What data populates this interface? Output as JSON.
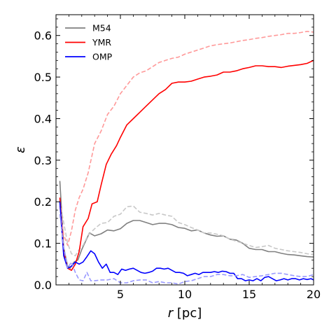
{
  "chart_data": {
    "type": "line",
    "xlabel_var": "r",
    "xlabel_unit": " [pc]",
    "ylabel": "ε",
    "xlim": [
      0,
      20
    ],
    "ylim": [
      0,
      0.65
    ],
    "xticks": [
      5,
      10,
      15,
      20
    ],
    "xtick_labels": [
      "5",
      "10",
      "15",
      "20"
    ],
    "yticks": [
      0.0,
      0.1,
      0.2,
      0.3,
      0.4,
      0.5,
      0.6
    ],
    "ytick_labels": [
      "0.0",
      "0.1",
      "0.2",
      "0.3",
      "0.4",
      "0.5",
      "0.6"
    ],
    "grid": false,
    "legend_position": "top-left",
    "legend": [
      {
        "name": "M54",
        "color": "#808080"
      },
      {
        "name": "YMR",
        "color": "#ff0000"
      },
      {
        "name": "OMP",
        "color": "#0000ff"
      }
    ],
    "series": [
      {
        "name": "M54",
        "style": "solid",
        "color": "#808080",
        "x": [
          0.3,
          0.6,
          0.9,
          1.1,
          1.4,
          1.7,
          2.0,
          2.3,
          2.6,
          3.0,
          3.5,
          4.0,
          4.5,
          5.0,
          5.5,
          6.0,
          6.5,
          7.0,
          7.5,
          8.0,
          8.5,
          9.0,
          9.5,
          10.0,
          10.5,
          11.0,
          11.5,
          12.0,
          12.5,
          13.0,
          13.5,
          14.0,
          14.5,
          15.0,
          15.5,
          16.0,
          16.5,
          17.0,
          17.5,
          18.0,
          18.5,
          19.0,
          19.5,
          20.0
        ],
        "y": [
          0.25,
          0.09,
          0.045,
          0.04,
          0.055,
          0.06,
          0.085,
          0.105,
          0.125,
          0.118,
          0.123,
          0.132,
          0.13,
          0.135,
          0.148,
          0.155,
          0.155,
          0.15,
          0.145,
          0.148,
          0.148,
          0.145,
          0.138,
          0.136,
          0.13,
          0.132,
          0.125,
          0.12,
          0.117,
          0.118,
          0.11,
          0.108,
          0.1,
          0.088,
          0.085,
          0.085,
          0.08,
          0.08,
          0.076,
          0.073,
          0.072,
          0.07,
          0.068,
          0.067
        ]
      },
      {
        "name": "M54 (dashed)",
        "style": "dashed",
        "color": "#c8c8c8",
        "x": [
          0.3,
          0.6,
          0.9,
          1.2,
          1.5,
          1.8,
          2.1,
          2.5,
          3.0,
          3.5,
          4.0,
          4.5,
          5.0,
          5.5,
          6.0,
          6.5,
          7.0,
          7.5,
          8.0,
          8.5,
          9.0,
          9.5,
          10.0,
          10.5,
          11.0,
          11.5,
          12.0,
          12.5,
          13.0,
          13.5,
          14.0,
          14.5,
          15.0,
          15.5,
          16.0,
          16.5,
          17.0,
          17.5,
          18.0,
          18.5,
          19.0,
          19.5,
          20.0
        ],
        "y": [
          0.2,
          0.15,
          0.1,
          0.075,
          0.07,
          0.085,
          0.095,
          0.12,
          0.135,
          0.148,
          0.15,
          0.165,
          0.17,
          0.188,
          0.19,
          0.175,
          0.172,
          0.168,
          0.172,
          0.168,
          0.165,
          0.15,
          0.145,
          0.138,
          0.132,
          0.125,
          0.125,
          0.122,
          0.118,
          0.11,
          0.105,
          0.1,
          0.095,
          0.09,
          0.092,
          0.095,
          0.088,
          0.085,
          0.082,
          0.08,
          0.078,
          0.075,
          0.073
        ]
      },
      {
        "name": "YMR",
        "style": "solid",
        "color": "#ff0000",
        "x": [
          0.3,
          0.6,
          0.9,
          1.2,
          1.5,
          1.8,
          2.1,
          2.5,
          2.8,
          3.2,
          3.5,
          3.9,
          4.3,
          4.7,
          5.0,
          5.5,
          6.0,
          6.5,
          7.0,
          7.5,
          8.0,
          8.5,
          9.0,
          9.5,
          10.0,
          10.5,
          11.0,
          11.5,
          12.0,
          12.5,
          13.0,
          13.5,
          14.0,
          14.5,
          15.0,
          15.5,
          16.0,
          16.5,
          17.0,
          17.5,
          18.0,
          18.5,
          19.0,
          19.5,
          20.0
        ],
        "y": [
          0.21,
          0.08,
          0.04,
          0.035,
          0.05,
          0.08,
          0.14,
          0.16,
          0.195,
          0.2,
          0.24,
          0.29,
          0.315,
          0.335,
          0.355,
          0.385,
          0.4,
          0.415,
          0.43,
          0.445,
          0.46,
          0.47,
          0.485,
          0.488,
          0.488,
          0.49,
          0.495,
          0.5,
          0.502,
          0.505,
          0.512,
          0.512,
          0.515,
          0.52,
          0.523,
          0.527,
          0.527,
          0.525,
          0.525,
          0.523,
          0.526,
          0.528,
          0.53,
          0.533,
          0.54
        ]
      },
      {
        "name": "YMR (dashed)",
        "style": "dashed",
        "color": "#ff9999",
        "x": [
          0.3,
          0.6,
          0.9,
          1.2,
          1.5,
          1.8,
          2.1,
          2.5,
          3.0,
          3.5,
          4.0,
          4.5,
          5.0,
          5.5,
          6.0,
          6.5,
          7.0,
          7.5,
          8.0,
          8.5,
          9.0,
          9.5,
          10.0,
          10.5,
          11.0,
          11.5,
          12.0,
          12.5,
          13.0,
          13.5,
          14.0,
          14.5,
          15.0,
          15.5,
          16.0,
          16.5,
          17.0,
          17.5,
          18.0,
          18.5,
          19.0,
          19.5,
          20.0
        ],
        "y": [
          0.19,
          0.12,
          0.095,
          0.13,
          0.18,
          0.21,
          0.23,
          0.27,
          0.34,
          0.37,
          0.41,
          0.43,
          0.46,
          0.48,
          0.5,
          0.51,
          0.515,
          0.525,
          0.535,
          0.54,
          0.545,
          0.548,
          0.555,
          0.56,
          0.565,
          0.57,
          0.575,
          0.578,
          0.58,
          0.582,
          0.585,
          0.588,
          0.59,
          0.593,
          0.595,
          0.598,
          0.6,
          0.602,
          0.605,
          0.605,
          0.607,
          0.61,
          0.608
        ]
      },
      {
        "name": "OMP",
        "style": "solid",
        "color": "#0000ff",
        "x": [
          0.3,
          0.6,
          0.9,
          1.2,
          1.5,
          1.8,
          2.1,
          2.4,
          2.7,
          3.0,
          3.3,
          3.6,
          3.9,
          4.2,
          4.5,
          4.8,
          5.1,
          5.4,
          5.7,
          6.0,
          6.3,
          6.6,
          6.9,
          7.2,
          7.5,
          7.8,
          8.1,
          8.4,
          8.7,
          9.0,
          9.3,
          9.6,
          9.9,
          10.2,
          10.5,
          10.8,
          11.1,
          11.4,
          11.7,
          12.0,
          12.3,
          12.6,
          12.9,
          13.2,
          13.5,
          13.8,
          14.1,
          14.4,
          14.7,
          15.0,
          15.3,
          15.6,
          15.9,
          16.2,
          16.5,
          16.8,
          17.1,
          17.4,
          17.7,
          18.0,
          18.3,
          18.6,
          18.9,
          19.2,
          19.5,
          19.8,
          20.0
        ],
        "y": [
          0.2,
          0.07,
          0.04,
          0.045,
          0.055,
          0.05,
          0.055,
          0.068,
          0.082,
          0.075,
          0.055,
          0.04,
          0.05,
          0.03,
          0.03,
          0.025,
          0.038,
          0.035,
          0.038,
          0.04,
          0.035,
          0.03,
          0.028,
          0.03,
          0.033,
          0.04,
          0.04,
          0.038,
          0.04,
          0.035,
          0.03,
          0.03,
          0.028,
          0.022,
          0.025,
          0.028,
          0.025,
          0.03,
          0.03,
          0.03,
          0.032,
          0.03,
          0.033,
          0.032,
          0.028,
          0.028,
          0.015,
          0.015,
          0.01,
          0.012,
          0.01,
          0.015,
          0.01,
          0.018,
          0.02,
          0.015,
          0.01,
          0.012,
          0.015,
          0.012,
          0.015,
          0.015,
          0.012,
          0.015,
          0.013,
          0.015,
          0.012
        ]
      },
      {
        "name": "OMP (dashed)",
        "style": "dashed",
        "color": "#9999ff",
        "x": [
          0.3,
          0.6,
          0.9,
          1.2,
          1.5,
          1.8,
          2.1,
          2.4,
          2.7,
          3.0,
          3.5,
          4.0,
          4.5,
          5.0,
          5.5,
          6.0,
          6.5,
          7.0,
          7.5,
          8.0,
          8.5,
          9.0,
          9.5,
          10.0,
          10.5,
          11.0,
          11.5,
          12.0,
          12.5,
          13.0,
          13.5,
          14.0,
          14.5,
          15.0,
          15.5,
          16.0,
          16.5,
          17.0,
          17.5,
          18.0,
          18.5,
          19.0,
          19.5,
          20.0
        ],
        "y": [
          0.17,
          0.09,
          0.04,
          0.055,
          0.03,
          0.012,
          0.01,
          0.03,
          0.01,
          0.01,
          0.012,
          0.012,
          0.015,
          0.005,
          0.005,
          0.01,
          0.012,
          0.012,
          0.005,
          0.008,
          0.005,
          0.005,
          0.002,
          0.008,
          0.01,
          0.015,
          0.02,
          0.02,
          0.025,
          0.025,
          0.022,
          0.022,
          0.025,
          0.018,
          0.02,
          0.022,
          0.025,
          0.028,
          0.028,
          0.025,
          0.022,
          0.02,
          0.02,
          0.025
        ]
      }
    ]
  }
}
